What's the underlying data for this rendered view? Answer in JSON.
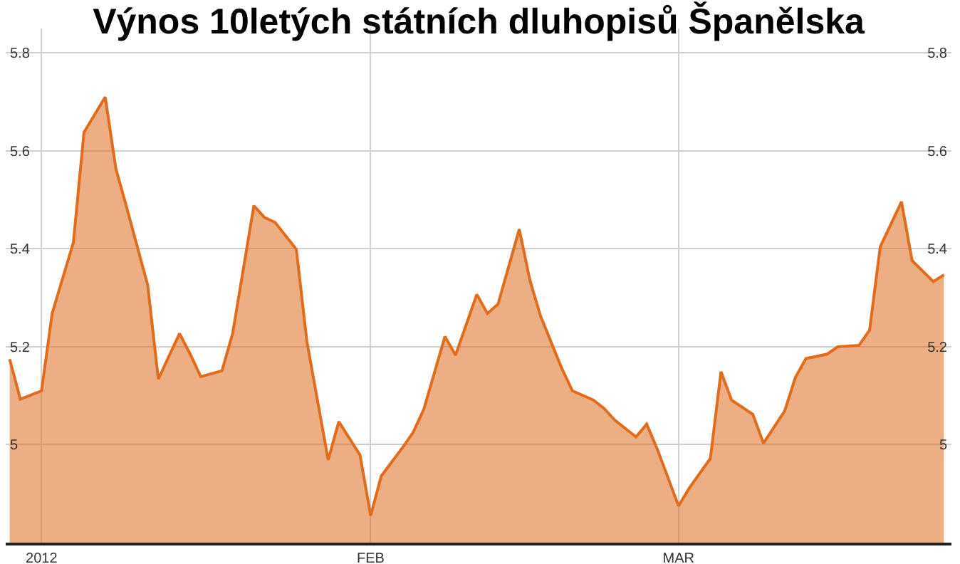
{
  "chart_data": {
    "type": "area",
    "title": "Výnos 10letých státních dluhopisů Španělska",
    "x": [
      "2011-12-29",
      "2011-12-30",
      "2012-01-01",
      "2012-01-02",
      "2012-01-04",
      "2012-01-05",
      "2012-01-07",
      "2012-01-08",
      "2012-01-09",
      "2012-01-11",
      "2012-01-12",
      "2012-01-14",
      "2012-01-15",
      "2012-01-16",
      "2012-01-18",
      "2012-01-19",
      "2012-01-21",
      "2012-01-22",
      "2012-01-23",
      "2012-01-25",
      "2012-01-26",
      "2012-01-28",
      "2012-01-29",
      "2012-01-31",
      "2012-02-01",
      "2012-02-02",
      "2012-02-04",
      "2012-02-05",
      "2012-02-06",
      "2012-02-08",
      "2012-02-09",
      "2012-02-11",
      "2012-02-12",
      "2012-02-13",
      "2012-02-15",
      "2012-02-16",
      "2012-02-17",
      "2012-02-19",
      "2012-02-20",
      "2012-02-22",
      "2012-02-23",
      "2012-02-24",
      "2012-02-26",
      "2012-02-27",
      "2012-02-28",
      "2012-03-01",
      "2012-03-02",
      "2012-03-04",
      "2012-03-05",
      "2012-03-06",
      "2012-03-08",
      "2012-03-09",
      "2012-03-11",
      "2012-03-12",
      "2012-03-13",
      "2012-03-15",
      "2012-03-16",
      "2012-03-18",
      "2012-03-19",
      "2012-03-20",
      "2012-03-22",
      "2012-03-23",
      "2012-03-25",
      "2012-03-26"
    ],
    "series": [
      {
        "color": "#e06c1e",
        "values": [
          5.175,
          5.093,
          5.11,
          5.268,
          5.413,
          5.638,
          5.71,
          5.564,
          5.486,
          5.326,
          5.134,
          5.227,
          5.185,
          5.139,
          5.151,
          5.227,
          5.488,
          5.464,
          5.454,
          5.399,
          5.21,
          4.969,
          5.047,
          4.979,
          4.855,
          4.936,
          4.994,
          5.025,
          5.072,
          5.221,
          5.183,
          5.307,
          5.268,
          5.287,
          5.44,
          5.336,
          5.263,
          5.156,
          5.11,
          5.091,
          5.074,
          5.05,
          5.016,
          5.042,
          4.991,
          4.875,
          4.911,
          4.972,
          5.149,
          5.091,
          5.062,
          5.003,
          5.069,
          5.137,
          5.176,
          5.185,
          5.2,
          5.203,
          5.234,
          5.404,
          5.496,
          5.376,
          5.333,
          5.347
        ]
      }
    ],
    "xlim": [
      "2011-12-28T15:00",
      "2012-03-26T17:00"
    ],
    "xticks": [
      {
        "value": "2012-01-01",
        "label": "2012"
      },
      {
        "value": "2012-02-01",
        "label": "FEB"
      },
      {
        "value": "2012-03-01",
        "label": "MAR"
      }
    ],
    "ylim": [
      4.8,
      5.85
    ],
    "yticks": [
      5,
      5.2,
      5.4,
      5.6,
      5.8
    ],
    "y2lim": [
      4.8,
      5.85
    ],
    "y2ticks": [
      5,
      5.2,
      5.4,
      5.6,
      5.8
    ],
    "grid": true
  }
}
